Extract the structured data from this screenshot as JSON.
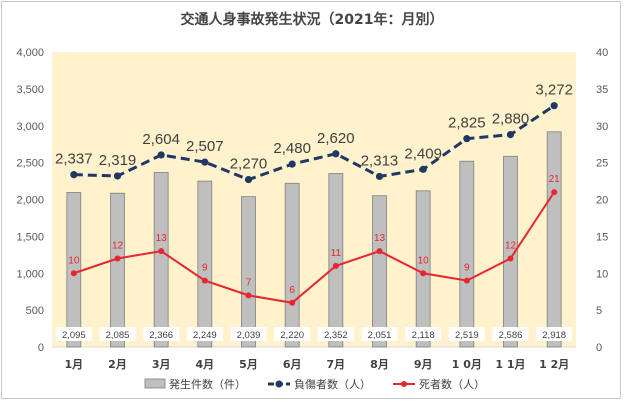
{
  "chart_data": {
    "type": "bar",
    "title": "交通人身事故発生状況（2021年：月別）",
    "categories": [
      "1月",
      "2月",
      "3月",
      "4月",
      "5月",
      "6月",
      "7月",
      "8月",
      "9月",
      "1 0月",
      "1 1月",
      "1 2月"
    ],
    "series": [
      {
        "name": "発生件数（件）",
        "type": "bar",
        "axis": "left",
        "color": "#bfbfbf",
        "values": [
          2095,
          2085,
          2366,
          2249,
          2039,
          2220,
          2352,
          2051,
          2118,
          2519,
          2586,
          2918
        ],
        "labels": [
          "2,095",
          "2,085",
          "2,366",
          "2,249",
          "2,039",
          "2,220",
          "2,352",
          "2,051",
          "2,118",
          "2,519",
          "2,586",
          "2,918"
        ]
      },
      {
        "name": "負傷者数（人）",
        "type": "line",
        "style": "dashed",
        "axis": "left",
        "color": "#1f3864",
        "values": [
          2337,
          2319,
          2604,
          2507,
          2270,
          2480,
          2620,
          2313,
          2409,
          2825,
          2880,
          3272
        ],
        "labels": [
          "2,337",
          "2,319",
          "2,604",
          "2,507",
          "2,270",
          "2,480",
          "2,620",
          "2,313",
          "2,409",
          "2,825",
          "2,880",
          "3,272"
        ]
      },
      {
        "name": "死者数（人）",
        "type": "line",
        "style": "solid",
        "axis": "right",
        "color": "#e8262d",
        "values": [
          10,
          12,
          13,
          9,
          7,
          6,
          11,
          13,
          10,
          9,
          12,
          21
        ],
        "labels": [
          "10",
          "12",
          "13",
          "9",
          "7",
          "6",
          "11",
          "13",
          "10",
          "9",
          "12",
          "21"
        ]
      }
    ],
    "y_left": {
      "lim": [
        0,
        4000
      ],
      "ticks": [
        "0",
        "500",
        "1,000",
        "1,500",
        "2,000",
        "2,500",
        "3,000",
        "3,500",
        "4,000"
      ]
    },
    "y_right": {
      "lim": [
        0,
        40
      ],
      "ticks": [
        "0",
        "5",
        "10",
        "15",
        "20",
        "25",
        "30",
        "35",
        "40"
      ]
    },
    "plot_background": "#fff2cc",
    "legend_position": "bottom",
    "grid": false
  }
}
